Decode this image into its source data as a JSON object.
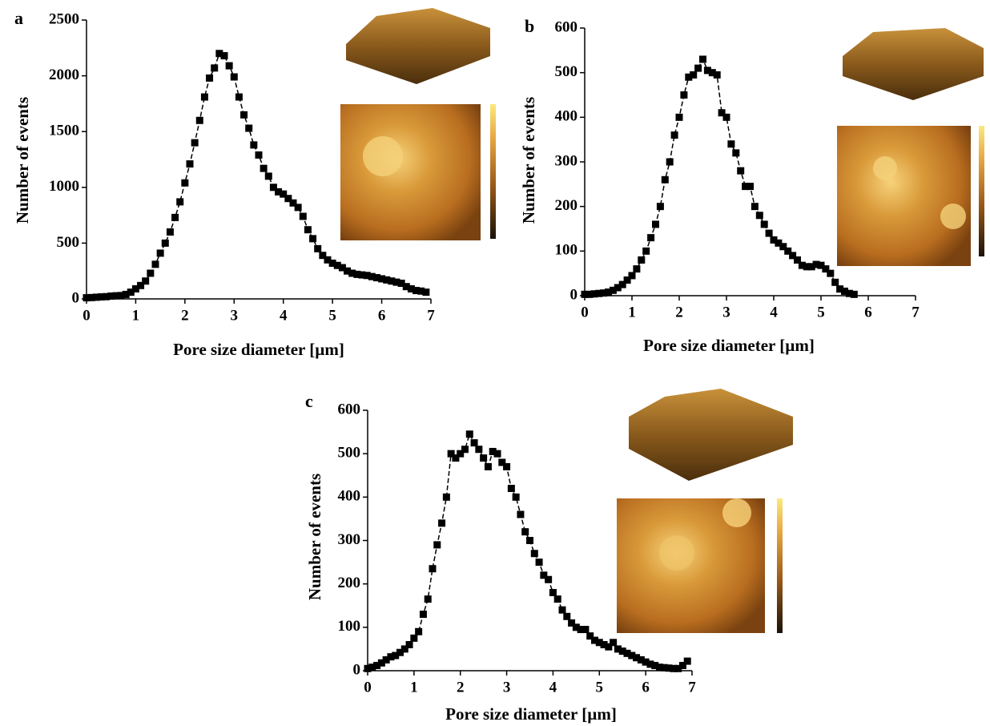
{
  "chart_data": [
    {
      "type": "scatter",
      "panel_label": "a",
      "xlabel": "Pore size diameter [µm]",
      "ylabel": "Number of events",
      "color": "#000000",
      "x": [
        0,
        0.1,
        0.2,
        0.3,
        0.4,
        0.5,
        0.6,
        0.7,
        0.8,
        0.9,
        1.0,
        1.1,
        1.2,
        1.3,
        1.4,
        1.5,
        1.6,
        1.7,
        1.8,
        1.9,
        2.0,
        2.1,
        2.2,
        2.3,
        2.4,
        2.5,
        2.6,
        2.7,
        2.8,
        2.9,
        3.0,
        3.1,
        3.2,
        3.3,
        3.4,
        3.5,
        3.6,
        3.7,
        3.8,
        3.9,
        4.0,
        4.1,
        4.2,
        4.3,
        4.4,
        4.5,
        4.6,
        4.7,
        4.8,
        4.9,
        5.0,
        5.1,
        5.2,
        5.3,
        5.4,
        5.5,
        5.6,
        5.7,
        5.8,
        5.9,
        6.0,
        6.1,
        6.2,
        6.3,
        6.4,
        6.5,
        6.6,
        6.7,
        6.8,
        6.9
      ],
      "values": [
        10,
        12,
        15,
        18,
        20,
        25,
        28,
        30,
        40,
        60,
        90,
        120,
        160,
        230,
        310,
        410,
        500,
        600,
        730,
        870,
        1040,
        1210,
        1400,
        1600,
        1810,
        1980,
        2070,
        2200,
        2180,
        2090,
        1990,
        1810,
        1650,
        1530,
        1380,
        1290,
        1170,
        1100,
        1000,
        960,
        940,
        900,
        860,
        820,
        740,
        620,
        540,
        450,
        390,
        350,
        320,
        300,
        280,
        250,
        230,
        220,
        215,
        210,
        200,
        190,
        180,
        170,
        160,
        150,
        140,
        110,
        90,
        75,
        70,
        60
      ],
      "xlim": [
        0,
        7
      ],
      "ylim": [
        0,
        2500
      ],
      "xticks": [
        0,
        1,
        2,
        3,
        4,
        5,
        6,
        7
      ],
      "yticks": [
        0,
        500,
        1000,
        1500,
        2000,
        2500
      ]
    },
    {
      "type": "scatter",
      "panel_label": "b",
      "xlabel": "Pore size diameter [µm]",
      "ylabel": "Number of events",
      "color": "#000000",
      "x": [
        0,
        0.1,
        0.2,
        0.3,
        0.4,
        0.5,
        0.6,
        0.7,
        0.8,
        0.9,
        1.0,
        1.1,
        1.2,
        1.3,
        1.4,
        1.5,
        1.6,
        1.7,
        1.8,
        1.9,
        2.0,
        2.1,
        2.2,
        2.3,
        2.4,
        2.5,
        2.6,
        2.7,
        2.8,
        2.9,
        3.0,
        3.1,
        3.2,
        3.3,
        3.4,
        3.5,
        3.6,
        3.7,
        3.8,
        3.9,
        4.0,
        4.1,
        4.2,
        4.3,
        4.4,
        4.5,
        4.6,
        4.7,
        4.8,
        4.9,
        5.0,
        5.1,
        5.2,
        5.3,
        5.4,
        5.5,
        5.6,
        5.7
      ],
      "values": [
        3,
        3,
        4,
        5,
        6,
        8,
        12,
        18,
        25,
        35,
        45,
        60,
        80,
        100,
        130,
        160,
        200,
        260,
        300,
        360,
        400,
        450,
        490,
        495,
        510,
        530,
        505,
        500,
        495,
        410,
        400,
        340,
        320,
        280,
        245,
        245,
        200,
        180,
        160,
        140,
        125,
        118,
        110,
        100,
        90,
        80,
        68,
        65,
        65,
        70,
        68,
        60,
        50,
        30,
        15,
        10,
        5,
        3
      ],
      "xlim": [
        0,
        7
      ],
      "ylim": [
        0,
        600
      ],
      "xticks": [
        0,
        1,
        2,
        3,
        4,
        5,
        6,
        7
      ],
      "yticks": [
        0,
        100,
        200,
        300,
        400,
        500,
        600
      ]
    },
    {
      "type": "scatter",
      "panel_label": "c",
      "xlabel": "Pore size diameter [µm]",
      "ylabel": "Number of events",
      "color": "#000000",
      "x": [
        0,
        0.1,
        0.2,
        0.3,
        0.4,
        0.5,
        0.6,
        0.7,
        0.8,
        0.9,
        1.0,
        1.1,
        1.2,
        1.3,
        1.4,
        1.5,
        1.6,
        1.7,
        1.8,
        1.9,
        2.0,
        2.1,
        2.2,
        2.3,
        2.4,
        2.5,
        2.6,
        2.7,
        2.8,
        2.9,
        3.0,
        3.1,
        3.2,
        3.3,
        3.4,
        3.5,
        3.6,
        3.7,
        3.8,
        3.9,
        4.0,
        4.1,
        4.2,
        4.3,
        4.4,
        4.5,
        4.6,
        4.7,
        4.8,
        4.9,
        5.0,
        5.1,
        5.2,
        5.3,
        5.4,
        5.5,
        5.6,
        5.7,
        5.8,
        5.9,
        6.0,
        6.1,
        6.2,
        6.3,
        6.4,
        6.5,
        6.6,
        6.7,
        6.8,
        6.9
      ],
      "values": [
        5,
        8,
        12,
        18,
        25,
        32,
        35,
        42,
        50,
        60,
        75,
        90,
        130,
        165,
        235,
        290,
        340,
        400,
        500,
        490,
        500,
        510,
        545,
        525,
        510,
        490,
        470,
        505,
        500,
        480,
        470,
        420,
        400,
        360,
        320,
        300,
        270,
        250,
        220,
        210,
        180,
        165,
        140,
        125,
        110,
        100,
        95,
        95,
        80,
        70,
        65,
        60,
        55,
        65,
        50,
        45,
        40,
        35,
        30,
        25,
        20,
        15,
        12,
        8,
        7,
        6,
        5,
        5,
        12,
        22
      ],
      "xlim": [
        0,
        7
      ],
      "ylim": [
        0,
        600
      ],
      "xticks": [
        0,
        1,
        2,
        3,
        4,
        5,
        6,
        7
      ],
      "yticks": [
        0,
        100,
        200,
        300,
        400,
        500,
        600
      ]
    }
  ]
}
